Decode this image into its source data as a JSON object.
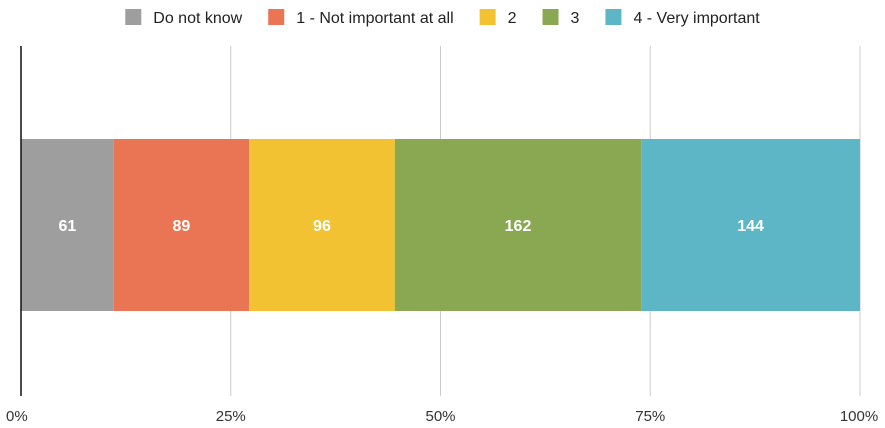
{
  "chart_data": {
    "type": "bar",
    "orientation": "horizontal",
    "stacked": "percent",
    "categories": [
      ""
    ],
    "series": [
      {
        "name": "Do not know",
        "values": [
          61
        ],
        "color": "#9e9e9e"
      },
      {
        "name": "1 -  Not important at all",
        "values": [
          89
        ],
        "color": "#e97555"
      },
      {
        "name": "2",
        "values": [
          96
        ],
        "color": "#f2c232"
      },
      {
        "name": "3",
        "values": [
          162
        ],
        "color": "#8aa752"
      },
      {
        "name": "4 - Very important",
        "values": [
          144
        ],
        "color": "#5db6c6"
      }
    ],
    "xlim": [
      0,
      100
    ],
    "x_ticks": [
      "0%",
      "25%",
      "50%",
      "75%",
      "100%"
    ],
    "grid": true,
    "legend": "top"
  }
}
